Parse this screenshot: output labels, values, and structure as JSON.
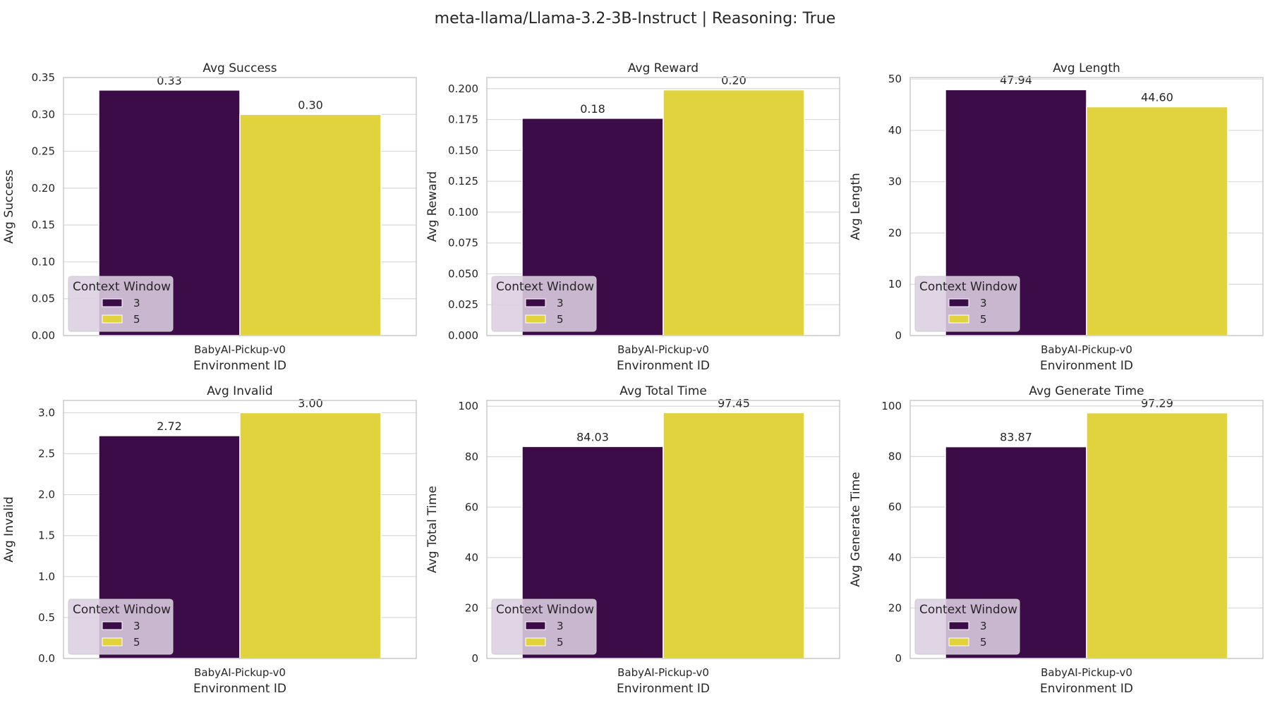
{
  "figure": {
    "title": "meta-llama/Llama-3.2-3B-Instruct | Reasoning: True"
  },
  "colors": {
    "series_3": "#3c0c48",
    "series_5": "#e1d33e",
    "grid": "#d9d9d9",
    "spine": "#cccccc",
    "legend_bg": "#dccfe0"
  },
  "chart_data": [
    {
      "type": "bar",
      "title": "Avg Success",
      "xlabel": "Environment ID",
      "ylabel": "Avg Success",
      "categories": [
        "BabyAI-Pickup-v0"
      ],
      "series": [
        {
          "name": "3",
          "values": [
            0.333
          ]
        },
        {
          "name": "5",
          "values": [
            0.3
          ]
        }
      ],
      "data_labels": [
        "0.33",
        "0.30"
      ],
      "ylim": [
        0,
        0.35
      ],
      "yticks": [
        "0.00",
        "0.05",
        "0.10",
        "0.15",
        "0.20",
        "0.25",
        "0.30",
        "0.35"
      ],
      "ytick_values": [
        0,
        0.05,
        0.1,
        0.15,
        0.2,
        0.25,
        0.3,
        0.35
      ],
      "grid": true,
      "legend": {
        "title": "Context Window",
        "position": "lower-left",
        "entries": [
          "3",
          "5"
        ]
      }
    },
    {
      "type": "bar",
      "title": "Avg Reward",
      "xlabel": "Environment ID",
      "ylabel": "Avg Reward",
      "categories": [
        "BabyAI-Pickup-v0"
      ],
      "series": [
        {
          "name": "3",
          "values": [
            0.176
          ]
        },
        {
          "name": "5",
          "values": [
            0.199
          ]
        }
      ],
      "data_labels": [
        "0.18",
        "0.20"
      ],
      "ylim": [
        0,
        0.209
      ],
      "yticks": [
        "0.000",
        "0.025",
        "0.050",
        "0.075",
        "0.100",
        "0.125",
        "0.150",
        "0.175",
        "0.200"
      ],
      "ytick_values": [
        0,
        0.025,
        0.05,
        0.075,
        0.1,
        0.125,
        0.15,
        0.175,
        0.2
      ],
      "grid": true,
      "legend": {
        "title": "Context Window",
        "position": "lower-left",
        "entries": [
          "3",
          "5"
        ]
      }
    },
    {
      "type": "bar",
      "title": "Avg Length",
      "xlabel": "Environment ID",
      "ylabel": "Avg Length",
      "categories": [
        "BabyAI-Pickup-v0"
      ],
      "series": [
        {
          "name": "3",
          "values": [
            47.94
          ]
        },
        {
          "name": "5",
          "values": [
            44.6
          ]
        }
      ],
      "data_labels": [
        "47.94",
        "44.60"
      ],
      "ylim": [
        0,
        50.3
      ],
      "yticks": [
        "0",
        "10",
        "20",
        "30",
        "40",
        "50"
      ],
      "ytick_values": [
        0,
        10,
        20,
        30,
        40,
        50
      ],
      "grid": true,
      "legend": {
        "title": "Context Window",
        "position": "lower-left",
        "entries": [
          "3",
          "5"
        ]
      }
    },
    {
      "type": "bar",
      "title": "Avg Invalid",
      "xlabel": "Environment ID",
      "ylabel": "Avg Invalid",
      "categories": [
        "BabyAI-Pickup-v0"
      ],
      "series": [
        {
          "name": "3",
          "values": [
            2.72
          ]
        },
        {
          "name": "5",
          "values": [
            3.0
          ]
        }
      ],
      "data_labels": [
        "2.72",
        "3.00"
      ],
      "ylim": [
        0,
        3.15
      ],
      "yticks": [
        "0.0",
        "0.5",
        "1.0",
        "1.5",
        "2.0",
        "2.5",
        "3.0"
      ],
      "ytick_values": [
        0,
        0.5,
        1.0,
        1.5,
        2.0,
        2.5,
        3.0
      ],
      "grid": true,
      "legend": {
        "title": "Context Window",
        "position": "lower-left",
        "entries": [
          "3",
          "5"
        ]
      }
    },
    {
      "type": "bar",
      "title": "Avg Total Time",
      "xlabel": "Environment ID",
      "ylabel": "Avg Total Time",
      "categories": [
        "BabyAI-Pickup-v0"
      ],
      "series": [
        {
          "name": "3",
          "values": [
            84.03
          ]
        },
        {
          "name": "5",
          "values": [
            97.45
          ]
        }
      ],
      "data_labels": [
        "84.03",
        "97.45"
      ],
      "ylim": [
        0,
        102.3
      ],
      "yticks": [
        "0",
        "20",
        "40",
        "60",
        "80",
        "100"
      ],
      "ytick_values": [
        0,
        20,
        40,
        60,
        80,
        100
      ],
      "grid": true,
      "legend": {
        "title": "Context Window",
        "position": "lower-left",
        "entries": [
          "3",
          "5"
        ]
      }
    },
    {
      "type": "bar",
      "title": "Avg Generate Time",
      "xlabel": "Environment ID",
      "ylabel": "Avg Generate Time",
      "categories": [
        "BabyAI-Pickup-v0"
      ],
      "series": [
        {
          "name": "3",
          "values": [
            83.87
          ]
        },
        {
          "name": "5",
          "values": [
            97.29
          ]
        }
      ],
      "data_labels": [
        "83.87",
        "97.29"
      ],
      "ylim": [
        0,
        102.2
      ],
      "yticks": [
        "0",
        "20",
        "40",
        "60",
        "80",
        "100"
      ],
      "ytick_values": [
        0,
        20,
        40,
        60,
        80,
        100
      ],
      "grid": true,
      "legend": {
        "title": "Context Window",
        "position": "lower-left",
        "entries": [
          "3",
          "5"
        ]
      }
    }
  ]
}
